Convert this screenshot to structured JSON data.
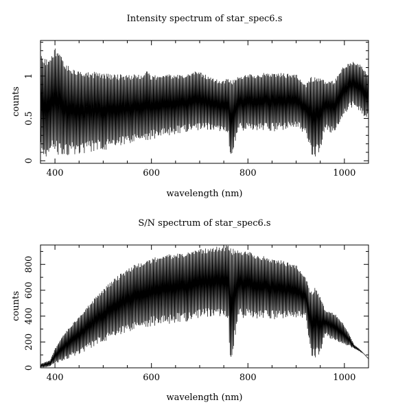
{
  "chart_data": [
    {
      "type": "line",
      "title": "Intensity spectrum of star_spec6.s",
      "xlabel": "wavelength (nm)",
      "ylabel": "counts",
      "xlim": [
        370,
        1050
      ],
      "ylim": [
        -0.03,
        1.42
      ],
      "xticks": [
        400,
        600,
        800,
        1000
      ],
      "yticks": [
        0,
        0.5,
        1
      ],
      "xtick_labels": [
        "400",
        "600",
        "800",
        "1000"
      ],
      "ytick_labels": [
        "0",
        "0.5",
        "1"
      ],
      "grid": false,
      "series": [
        {
          "style": "dense oscillating spectrum, upper envelope (top of fringes)",
          "x": [
            370,
            380,
            390,
            400,
            410,
            420,
            430,
            440,
            450,
            460,
            480,
            500,
            520,
            540,
            560,
            580,
            590,
            600,
            620,
            640,
            660,
            680,
            690,
            700,
            720,
            740,
            760,
            770,
            780,
            800,
            820,
            840,
            860,
            880,
            900,
            920,
            930,
            940,
            950,
            960,
            980,
            990,
            1000,
            1010,
            1020,
            1030,
            1040,
            1050
          ],
          "values": [
            1.25,
            1.2,
            1.25,
            1.35,
            1.28,
            1.15,
            1.12,
            1.08,
            1.1,
            1.07,
            1.05,
            1.04,
            1.02,
            1.02,
            1.02,
            1.02,
            1.08,
            1.01,
            1.02,
            1.02,
            1.02,
            1.03,
            1.06,
            1.05,
            1.0,
            0.95,
            0.97,
            0.97,
            1.01,
            1.02,
            1.03,
            1.05,
            1.04,
            1.03,
            1.03,
            0.9,
            1.02,
            0.98,
            1.0,
            0.95,
            0.95,
            1.05,
            1.13,
            1.15,
            1.18,
            1.15,
            1.1,
            1.0
          ]
        },
        {
          "style": "dense oscillating spectrum, lower envelope (bottom of fringes)",
          "x": [
            370,
            380,
            390,
            400,
            420,
            440,
            460,
            480,
            500,
            520,
            540,
            560,
            580,
            600,
            620,
            640,
            660,
            680,
            700,
            720,
            740,
            760,
            763,
            780,
            800,
            820,
            840,
            860,
            880,
            900,
            920,
            930,
            940,
            950,
            960,
            980,
            1000,
            1020,
            1040,
            1050
          ],
          "values": [
            0.05,
            0.05,
            0.05,
            0.06,
            0.06,
            0.07,
            0.08,
            0.1,
            0.12,
            0.15,
            0.18,
            0.2,
            0.22,
            0.25,
            0.28,
            0.3,
            0.32,
            0.35,
            0.35,
            0.35,
            0.34,
            0.33,
            0.0,
            0.35,
            0.36,
            0.36,
            0.35,
            0.34,
            0.36,
            0.4,
            0.3,
            0.05,
            0.05,
            0.1,
            0.35,
            0.3,
            0.55,
            0.65,
            0.5,
            0.5
          ]
        }
      ]
    },
    {
      "type": "line",
      "title": "S/N spectrum of star_spec6.s",
      "xlabel": "wavelength (nm)",
      "ylabel": "counts",
      "xlim": [
        370,
        1050
      ],
      "ylim": [
        0,
        950
      ],
      "xticks": [
        400,
        600,
        800,
        1000
      ],
      "yticks": [
        0,
        200,
        400,
        600,
        800
      ],
      "xtick_labels": [
        "400",
        "600",
        "800",
        "1000"
      ],
      "ytick_labels": [
        "0",
        "200",
        "400",
        "600",
        "800"
      ],
      "grid": false,
      "series": [
        {
          "style": "dense oscillating spectrum, upper envelope (peaks)",
          "x": [
            370,
            390,
            400,
            420,
            440,
            460,
            480,
            500,
            520,
            540,
            560,
            580,
            600,
            620,
            640,
            660,
            680,
            700,
            720,
            740,
            760,
            780,
            800,
            820,
            840,
            860,
            880,
            900,
            920,
            930,
            940,
            950,
            960,
            980,
            1000,
            1010,
            1020,
            1030,
            1040,
            1050
          ],
          "values": [
            30,
            60,
            150,
            270,
            360,
            450,
            530,
            610,
            680,
            740,
            790,
            820,
            850,
            870,
            880,
            890,
            900,
            920,
            930,
            940,
            950,
            920,
            900,
            880,
            860,
            840,
            820,
            800,
            700,
            600,
            620,
            560,
            450,
            420,
            330,
            260,
            180,
            150,
            110,
            70
          ]
        },
        {
          "style": "dense oscillating spectrum, lower envelope (troughs)",
          "x": [
            370,
            390,
            400,
            420,
            440,
            460,
            480,
            500,
            520,
            540,
            560,
            580,
            600,
            620,
            640,
            660,
            680,
            700,
            720,
            740,
            760,
            763,
            780,
            800,
            820,
            840,
            860,
            880,
            900,
            920,
            930,
            940,
            950,
            960,
            980,
            1000,
            1020,
            1040,
            1050
          ],
          "values": [
            0,
            10,
            30,
            60,
            90,
            120,
            160,
            200,
            230,
            260,
            280,
            300,
            320,
            330,
            340,
            350,
            360,
            380,
            380,
            390,
            380,
            0,
            380,
            390,
            380,
            380,
            370,
            380,
            390,
            380,
            80,
            80,
            100,
            250,
            200,
            180,
            150,
            110,
            70
          ]
        }
      ]
    }
  ]
}
